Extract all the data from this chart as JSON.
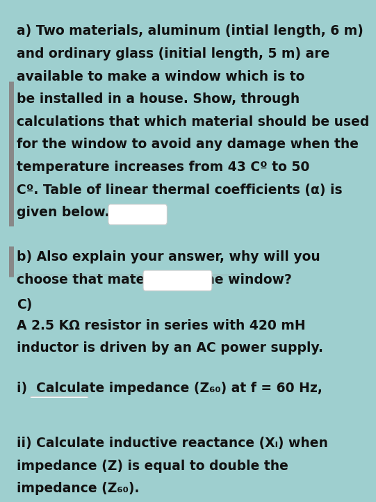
{
  "bg_color": "#9ecfcf",
  "text_color": "#111111",
  "font_size": 13.5,
  "line1": "a) Two materials, aluminum (intial length, 6 m)",
  "line2": "and ordinary glass (initial length, 5 m) are",
  "line3": "available to make a window which is to",
  "line4": "be installed in a house. Show, through",
  "line5": "calculations that which material should be used",
  "line6": "for the window to avoid any damage when the",
  "line7": "temperature increases from 43 Cº to 50",
  "line8": "Cº. Table of linear thermal coefficients (α) is",
  "line9": "given below.",
  "line_b1": "b) Also explain your answer, why will you",
  "line_b2": "choose that material for the window?",
  "line_c": "C)",
  "line_c2": "A 2.5 KΩ resistor in series with 420 mH",
  "line_c3": "inductor is driven by an AC power supply.",
  "line_i": "i)  Calculate impedance (Z₆₀) at f = 60 Hz,",
  "line_ii1": "ii) Calculate inductive reactance (Xₗ) when",
  "line_ii2": "impedance (Z) is equal to double the",
  "line_ii3": "impedance (Z₆₀).",
  "border_color": "#888888",
  "box_edge_color": "#cccccc",
  "box_face_color": "white"
}
